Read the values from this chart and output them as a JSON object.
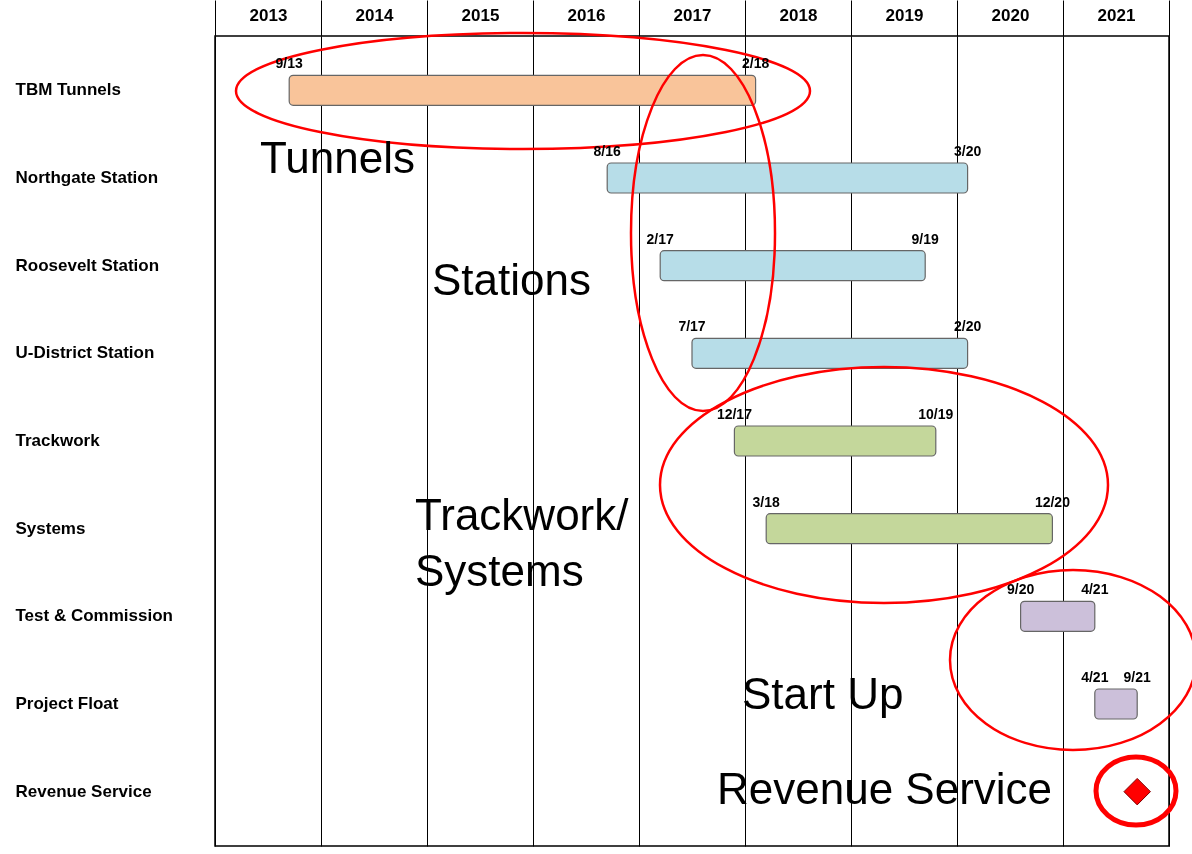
{
  "chart_data": {
    "type": "bar",
    "orientation": "horizontal",
    "categories": [
      "TBM Tunnels",
      "Northgate Station",
      "Roosevelt Station",
      "U-District Station",
      "Trackwork",
      "Systems",
      "Test & Commission",
      "Project Float",
      "Revenue Service"
    ],
    "series": [
      {
        "base": [
          2013.7,
          2016.7,
          2017.2,
          2017.5,
          2017.9,
          2018.2,
          2020.6,
          2021.3,
          null
        ],
        "values": [
          4.4,
          3.4,
          2.5,
          2.6,
          1.9,
          2.7,
          0.7,
          0.4,
          null
        ],
        "colors": [
          "#f9c49a",
          "#b7dde8",
          "#b7dde8",
          "#b7dde8",
          "#c4d79b",
          "#c4d79b",
          "#ccc0da",
          "#ccc0da",
          null
        ]
      },
      {
        "type": "scatter",
        "marker": "diamond",
        "color": "#ff0000",
        "values": [
          null,
          null,
          null,
          null,
          null,
          null,
          null,
          null,
          2021.7
        ]
      }
    ],
    "xlim": [
      2013,
      2022
    ],
    "xticks": [
      {
        "value": 2013,
        "label": null
      },
      {
        "value": 2014,
        "label": null
      },
      {
        "value": 2015,
        "label": null
      },
      {
        "value": 2016,
        "label": null
      },
      {
        "value": 2017,
        "label": null
      },
      {
        "value": 2018,
        "label": null
      },
      {
        "value": 2019,
        "label": null
      },
      {
        "value": 2020,
        "label": null
      },
      {
        "value": 2021,
        "label": null
      },
      {
        "value": 2022,
        "label": null
      },
      {
        "value": 2013.5,
        "label": "2013"
      },
      {
        "value": 2014.5,
        "label": "2014"
      },
      {
        "value": 2015.5,
        "label": "2015"
      },
      {
        "value": 2016.5,
        "label": "2016"
      },
      {
        "value": 2017.5,
        "label": "2017"
      },
      {
        "value": 2018.5,
        "label": "2018"
      },
      {
        "value": 2019.5,
        "label": "2019"
      },
      {
        "value": 2020.5,
        "label": "2020"
      },
      {
        "value": 2021.5,
        "label": "2021"
      }
    ],
    "grid": "x",
    "annotations": [
      {
        "text": "9/13",
        "x": 2013.7,
        "y": "TBM Tunnels"
      },
      {
        "text": "2/18",
        "x": 2018.1,
        "y": "TBM Tunnels"
      },
      {
        "text": "8/16",
        "x": 2016.7,
        "y": "Northgate Station"
      },
      {
        "text": "3/20",
        "x": 2020.1,
        "y": "Northgate Station"
      },
      {
        "text": "2/17",
        "x": 2017.2,
        "y": "Roosevelt Station"
      },
      {
        "text": "9/19",
        "x": 2019.7,
        "y": "Roosevelt Station"
      },
      {
        "text": "7/17",
        "x": 2017.5,
        "y": "U-District Station"
      },
      {
        "text": "2/20",
        "x": 2020.1,
        "y": "U-District Station"
      },
      {
        "text": "12/17",
        "x": 2017.9,
        "y": "Trackwork"
      },
      {
        "text": "10/19",
        "x": 2019.8,
        "y": "Trackwork"
      },
      {
        "text": "3/18",
        "x": 2018.2,
        "y": "Systems"
      },
      {
        "text": "12/20",
        "x": 2020.9,
        "y": "Systems"
      },
      {
        "text": "9/20",
        "x": 2020.6,
        "y": "Test & Commission"
      },
      {
        "text": "4/21",
        "x": 2021.3,
        "y": "Test & Commission"
      },
      {
        "text": "4/21",
        "x": 2021.3,
        "y": "Project Float"
      },
      {
        "text": "9/21",
        "x": 2021.7,
        "y": "Project Float"
      },
      "Tunnels",
      "Stations",
      "Trackwork/\nSystems",
      "Start Up",
      "Revenue Service"
    ]
  }
}
